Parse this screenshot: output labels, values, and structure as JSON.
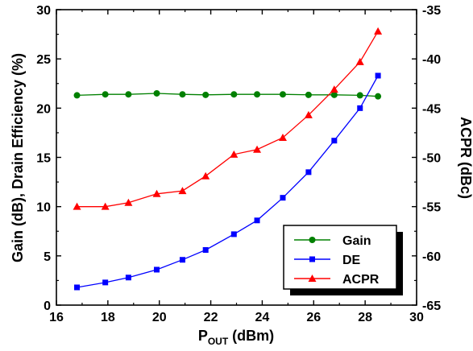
{
  "chart_data": {
    "type": "line",
    "x_axis": {
      "label_main": "P",
      "label_sub": "OUT",
      "label_unit": " (dBm)",
      "min": 16,
      "max": 30,
      "ticks": [
        16,
        18,
        20,
        22,
        24,
        26,
        28,
        30
      ]
    },
    "y_axis_left": {
      "label": "Gain (dB), Drain Efficiency (%)",
      "min": 0,
      "max": 30,
      "ticks": [
        0,
        5,
        10,
        15,
        20,
        25,
        30
      ]
    },
    "y_axis_right": {
      "label": "ACPR (dBc)",
      "min": -65,
      "max": -35,
      "ticks": [
        -65,
        -60,
        -55,
        -50,
        -45,
        -40,
        -35
      ]
    },
    "legend_position": "bottom-right",
    "series": [
      {
        "name": "Gain",
        "color": "#008000",
        "marker": "circle",
        "axis": "left",
        "x": [
          16.8,
          17.9,
          18.8,
          19.9,
          20.9,
          21.8,
          22.9,
          23.8,
          24.8,
          25.8,
          26.8,
          27.8,
          28.5
        ],
        "y": [
          21.3,
          21.4,
          21.4,
          21.5,
          21.4,
          21.35,
          21.4,
          21.4,
          21.4,
          21.35,
          21.35,
          21.3,
          21.2
        ]
      },
      {
        "name": "DE",
        "color": "#0000ff",
        "marker": "square",
        "axis": "left",
        "x": [
          16.8,
          17.9,
          18.8,
          19.9,
          20.9,
          21.8,
          22.9,
          23.8,
          24.8,
          25.8,
          26.8,
          27.8,
          28.5
        ],
        "y": [
          1.8,
          2.3,
          2.8,
          3.6,
          4.6,
          5.6,
          7.2,
          8.6,
          10.9,
          13.5,
          16.7,
          20.0,
          23.3
        ]
      },
      {
        "name": "ACPR",
        "color": "#ff0000",
        "marker": "triangle",
        "axis": "right",
        "x": [
          16.8,
          17.9,
          18.8,
          19.9,
          20.9,
          21.8,
          22.9,
          23.8,
          24.8,
          25.8,
          26.8,
          27.8,
          28.5
        ],
        "y": [
          -55.0,
          -55.0,
          -54.6,
          -53.7,
          -53.4,
          -51.9,
          -49.7,
          -49.2,
          -48.0,
          -45.7,
          -43.1,
          -40.3,
          -37.2
        ]
      }
    ]
  }
}
